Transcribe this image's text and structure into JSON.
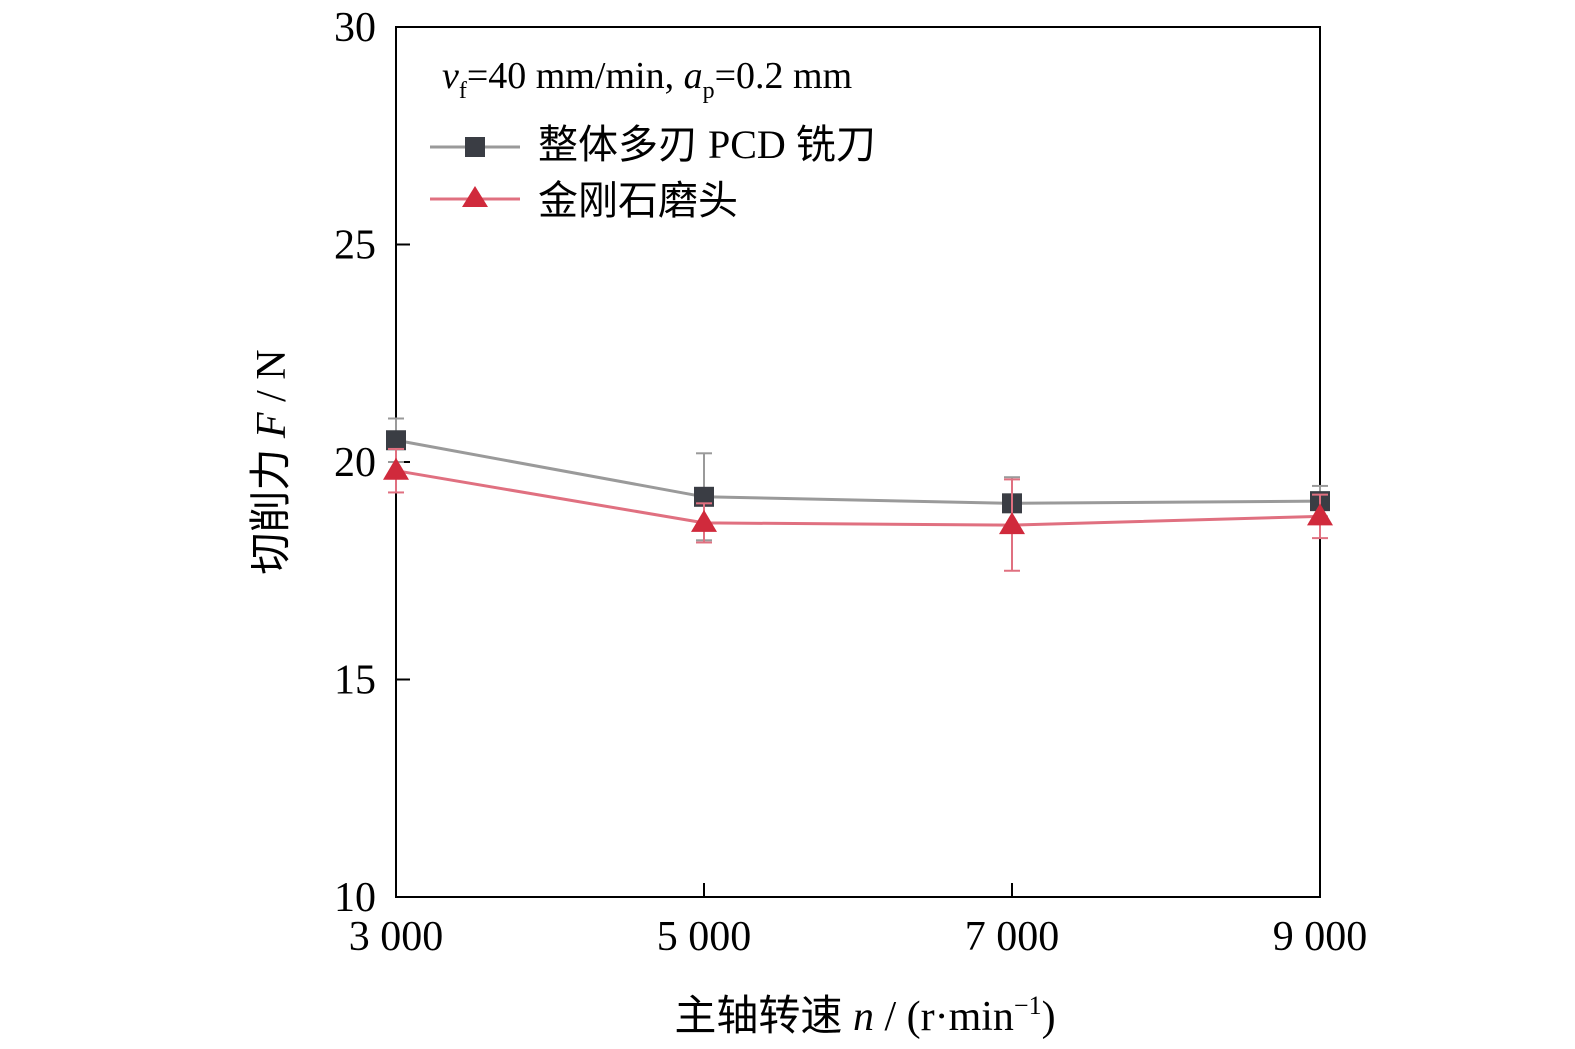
{
  "chart_data": {
    "type": "line",
    "xlabel": {
      "prefix": "主轴转速 ",
      "var": "n",
      "mid": " / (r·min",
      "sup": "−1",
      "suffix": ")"
    },
    "ylabel": {
      "prefix": "切削力 ",
      "var": "F",
      "suffix": " / N"
    },
    "annotation": {
      "v": "v",
      "v_sub": "f",
      "v_val": "=40 mm/min, ",
      "a": "a",
      "a_sub": "p",
      "a_val": "=0.2 mm"
    },
    "x": [
      3000,
      5000,
      7000,
      9000
    ],
    "x_tick_labels": [
      "3 000",
      "5 000",
      "7 000",
      "9 000"
    ],
    "xlim": [
      3000,
      9000
    ],
    "ylim": [
      10,
      30
    ],
    "y_ticks": [
      10,
      15,
      20,
      25,
      30
    ],
    "y_tick_labels": [
      "10",
      "15",
      "20",
      "25",
      "30"
    ],
    "grid": false,
    "legend_position": "top-left",
    "series": [
      {
        "name": "整体多刃 PCD 铣刀",
        "marker": "square",
        "color": "#3a3d44",
        "line_color": "#9a9a9a",
        "values": [
          20.5,
          19.2,
          19.05,
          19.1
        ],
        "errors": [
          0.5,
          1.0,
          0.6,
          0.35
        ]
      },
      {
        "name": "金刚石磨头",
        "marker": "triangle",
        "color": "#d02a3c",
        "line_color": "#e07080",
        "values": [
          19.8,
          18.6,
          18.55,
          18.75
        ],
        "errors": [
          0.5,
          0.45,
          1.05,
          0.5
        ]
      }
    ]
  }
}
